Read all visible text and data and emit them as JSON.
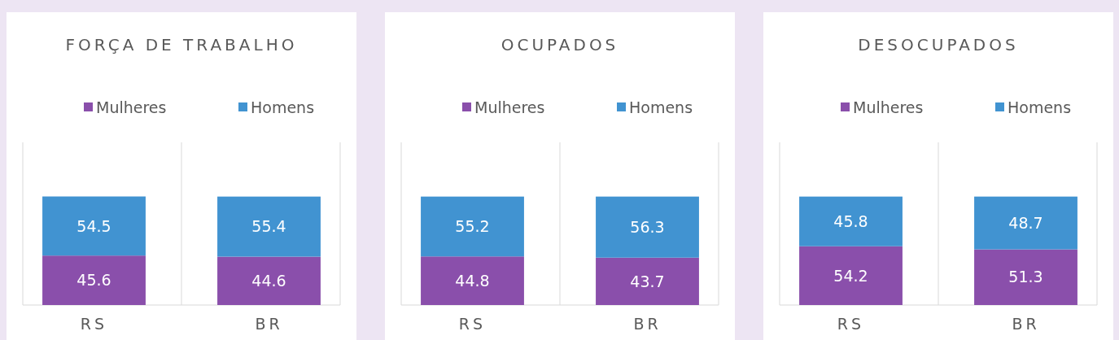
{
  "chart_data": [
    {
      "type": "bar",
      "title": "FORÇA DE TRABALHO",
      "categories": [
        "RS",
        "BR"
      ],
      "stacked": true,
      "data_labels": true,
      "legend": "top",
      "grid": "x",
      "ylim": [
        0,
        150
      ],
      "series": [
        {
          "name": "Mulheres",
          "color": "#8a4fab",
          "values": [
            45.6,
            44.6
          ]
        },
        {
          "name": "Homens",
          "color": "#4193d1",
          "values": [
            54.5,
            55.4
          ]
        }
      ]
    },
    {
      "type": "bar",
      "title": "OCUPADOS",
      "categories": [
        "RS",
        "BR"
      ],
      "stacked": true,
      "data_labels": true,
      "legend": "top",
      "grid": "x",
      "ylim": [
        0,
        150
      ],
      "series": [
        {
          "name": "Mulheres",
          "color": "#8a4fab",
          "values": [
            44.8,
            43.7
          ]
        },
        {
          "name": "Homens",
          "color": "#4193d1",
          "values": [
            55.2,
            56.3
          ]
        }
      ]
    },
    {
      "type": "bar",
      "title": "DESOCUPADOS",
      "categories": [
        "RS",
        "BR"
      ],
      "stacked": true,
      "data_labels": true,
      "legend": "top",
      "grid": "x",
      "ylim": [
        0,
        150
      ],
      "series": [
        {
          "name": "Mulheres",
          "color": "#8a4fab",
          "values": [
            54.2,
            51.3
          ]
        },
        {
          "name": "Homens",
          "color": "#4193d1",
          "values": [
            45.8,
            48.7
          ]
        }
      ]
    }
  ]
}
